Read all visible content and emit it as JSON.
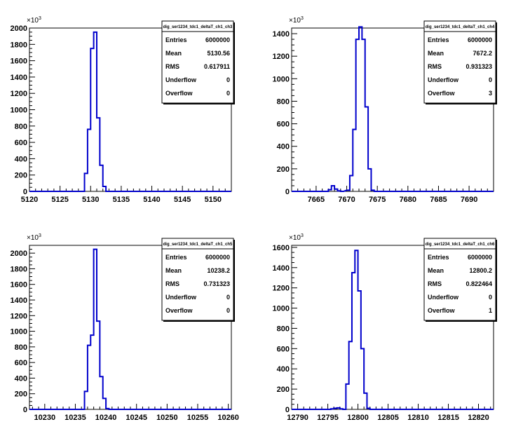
{
  "chart_data": [
    {
      "type": "histogram",
      "title": "dig_ser1234_tdc1_deltaT_ch1_ch3",
      "y_exponent_label": "×10",
      "y_exponent_power": "3",
      "xlim": [
        5120,
        5153
      ],
      "ylim": [
        0,
        2000
      ],
      "xticks": [
        5120,
        5125,
        5130,
        5135,
        5140,
        5145,
        5150
      ],
      "yticks": [
        0,
        200,
        400,
        600,
        800,
        1000,
        1200,
        1400,
        1600,
        1800,
        2000
      ],
      "bins": {
        "start": 5120,
        "width": 0.5,
        "values": [
          [
            5128.5,
            0
          ],
          [
            5129,
            220
          ],
          [
            5129.5,
            760
          ],
          [
            5130,
            1750
          ],
          [
            5130.5,
            1950
          ],
          [
            5131,
            900
          ],
          [
            5131.5,
            320
          ],
          [
            5132,
            60
          ],
          [
            5132.5,
            0
          ]
        ]
      },
      "stats": [
        {
          "label": "Entries",
          "value": "6000000"
        },
        {
          "label": "Mean",
          "value": "5130.56"
        },
        {
          "label": "RMS",
          "value": "0.617911"
        },
        {
          "label": "Underflow",
          "value": "0"
        },
        {
          "label": "Overflow",
          "value": "0"
        }
      ]
    },
    {
      "type": "histogram",
      "title": "dig_ser1234_tdc1_deltaT_ch1_ch4",
      "y_exponent_label": "×10",
      "y_exponent_power": "3",
      "xlim": [
        7661,
        7694
      ],
      "ylim": [
        0,
        1450
      ],
      "xticks": [
        7665,
        7670,
        7675,
        7680,
        7685,
        7690
      ],
      "yticks": [
        0,
        200,
        400,
        600,
        800,
        1000,
        1200,
        1400
      ],
      "bins": {
        "start": 7661,
        "width": 0.5,
        "values": [
          [
            7666.5,
            0
          ],
          [
            7667,
            15
          ],
          [
            7667.5,
            50
          ],
          [
            7668,
            20
          ],
          [
            7668.5,
            5
          ],
          [
            7669,
            0
          ],
          [
            7670,
            10
          ],
          [
            7670.5,
            140
          ],
          [
            7671,
            550
          ],
          [
            7671.5,
            1350
          ],
          [
            7672,
            1460
          ],
          [
            7672.5,
            1350
          ],
          [
            7673,
            750
          ],
          [
            7673.5,
            200
          ],
          [
            7674,
            10
          ],
          [
            7674.5,
            0
          ]
        ]
      },
      "stats": [
        {
          "label": "Entries",
          "value": "6000000"
        },
        {
          "label": "Mean",
          "value": "7672.2"
        },
        {
          "label": "RMS",
          "value": "0.931323"
        },
        {
          "label": "Underflow",
          "value": "0"
        },
        {
          "label": "Overflow",
          "value": "3"
        }
      ]
    },
    {
      "type": "histogram",
      "title": "dig_ser1234_tdc1_deltaT_ch1_ch5",
      "y_exponent_label": "×10",
      "y_exponent_power": "3",
      "xlim": [
        10227.5,
        10260.5
      ],
      "ylim": [
        0,
        2100
      ],
      "xticks": [
        10230,
        10235,
        10240,
        10245,
        10250,
        10255,
        10260
      ],
      "yticks": [
        0,
        200,
        400,
        600,
        800,
        1000,
        1200,
        1400,
        1600,
        1800,
        2000
      ],
      "bins": {
        "start": 10227.5,
        "width": 0.5,
        "values": [
          [
            10236,
            0
          ],
          [
            10236.5,
            230
          ],
          [
            10237,
            820
          ],
          [
            10237.5,
            950
          ],
          [
            10238,
            2050
          ],
          [
            10238.5,
            1130
          ],
          [
            10239,
            420
          ],
          [
            10239.5,
            140
          ],
          [
            10240,
            10
          ],
          [
            10240.5,
            0
          ]
        ]
      },
      "stats": [
        {
          "label": "Entries",
          "value": "6000000"
        },
        {
          "label": "Mean",
          "value": "10238.2"
        },
        {
          "label": "RMS",
          "value": "0.731323"
        },
        {
          "label": "Underflow",
          "value": "0"
        },
        {
          "label": "Overflow",
          "value": "0"
        }
      ]
    },
    {
      "type": "histogram",
      "title": "dig_ser1234_tdc1_deltaT_ch1_ch6",
      "y_exponent_label": "×10",
      "y_exponent_power": "3",
      "xlim": [
        12789,
        12822.5
      ],
      "ylim": [
        0,
        1620
      ],
      "xticks": [
        12790,
        12795,
        12800,
        12805,
        12810,
        12815,
        12820
      ],
      "yticks": [
        0,
        200,
        400,
        600,
        800,
        1000,
        1200,
        1400,
        1600
      ],
      "bins": {
        "start": 12789,
        "width": 0.5,
        "values": [
          [
            12795,
            0
          ],
          [
            12795.5,
            5
          ],
          [
            12796,
            10
          ],
          [
            12796.5,
            15
          ],
          [
            12797,
            5
          ],
          [
            12797.5,
            0
          ],
          [
            12798,
            250
          ],
          [
            12798.5,
            670
          ],
          [
            12799,
            1350
          ],
          [
            12799.5,
            1570
          ],
          [
            12800,
            1170
          ],
          [
            12800.5,
            600
          ],
          [
            12801,
            160
          ],
          [
            12801.5,
            10
          ],
          [
            12802,
            0
          ]
        ]
      },
      "stats": [
        {
          "label": "Entries",
          "value": "6000000"
        },
        {
          "label": "Mean",
          "value": "12800.2"
        },
        {
          "label": "RMS",
          "value": "0.822464"
        },
        {
          "label": "Underflow",
          "value": "0"
        },
        {
          "label": "Overflow",
          "value": "1"
        }
      ]
    }
  ]
}
